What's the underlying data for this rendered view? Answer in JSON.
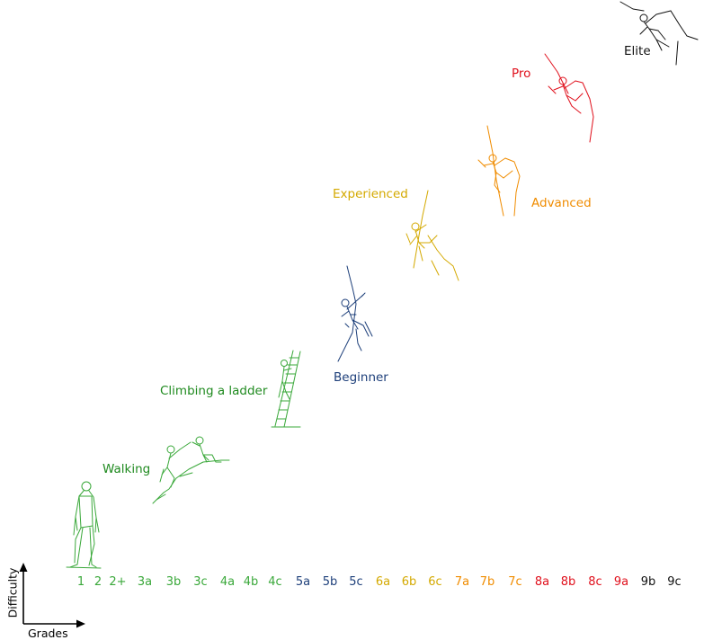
{
  "levels": [
    {
      "key": "walking",
      "label": "Walking",
      "color": "#1f8a1f"
    },
    {
      "key": "ladder",
      "label": "Climbing a ladder",
      "color": "#1f8a1f"
    },
    {
      "key": "beginner",
      "label": "Beginner",
      "color": "#1d3f7a"
    },
    {
      "key": "experienced",
      "label": "Experienced",
      "color": "#d4a900"
    },
    {
      "key": "advanced",
      "label": "Advanced",
      "color": "#f08c00"
    },
    {
      "key": "pro",
      "label": "Pro",
      "color": "#e0101c"
    },
    {
      "key": "elite",
      "label": "Elite",
      "color": "#111111"
    }
  ],
  "figures": [
    {
      "name": "walking-man-figure",
      "color": "#3aa83a"
    },
    {
      "name": "hiking-climbers-figure",
      "color": "#3aa83a"
    },
    {
      "name": "ladder-climber-figure",
      "color": "#3aa83a"
    },
    {
      "name": "beginner-climber-figure",
      "color": "#1d3f7a"
    },
    {
      "name": "experienced-climber-figure",
      "color": "#d4a900"
    },
    {
      "name": "advanced-climber-figure",
      "color": "#f08c00"
    },
    {
      "name": "pro-climber-figure",
      "color": "#e0101c"
    },
    {
      "name": "elite-climber-figure",
      "color": "#111111"
    }
  ],
  "grades": [
    {
      "label": "1",
      "color": "#3aa83a"
    },
    {
      "label": "2",
      "color": "#3aa83a"
    },
    {
      "label": "2+",
      "color": "#3aa83a"
    },
    {
      "label": "3a",
      "color": "#3aa83a"
    },
    {
      "label": "3b",
      "color": "#3aa83a"
    },
    {
      "label": "3c",
      "color": "#3aa83a"
    },
    {
      "label": "4a",
      "color": "#3aa83a"
    },
    {
      "label": "4b",
      "color": "#3aa83a"
    },
    {
      "label": "4c",
      "color": "#3aa83a"
    },
    {
      "label": "5a",
      "color": "#1d3f7a"
    },
    {
      "label": "5b",
      "color": "#1d3f7a"
    },
    {
      "label": "5c",
      "color": "#1d3f7a"
    },
    {
      "label": "6a",
      "color": "#d4a900"
    },
    {
      "label": "6b",
      "color": "#d4a900"
    },
    {
      "label": "6c",
      "color": "#d4a900"
    },
    {
      "label": "7a",
      "color": "#f08c00"
    },
    {
      "label": "7b",
      "color": "#f08c00"
    },
    {
      "label": "7c",
      "color": "#f08c00"
    },
    {
      "label": "8a",
      "color": "#e0101c"
    },
    {
      "label": "8b",
      "color": "#e0101c"
    },
    {
      "label": "8c",
      "color": "#e0101c"
    },
    {
      "label": "9a",
      "color": "#e0101c"
    },
    {
      "label": "9b",
      "color": "#111111"
    },
    {
      "label": "9c",
      "color": "#111111"
    }
  ],
  "axes": {
    "y_label": "Difficulty",
    "x_label": "Grades"
  }
}
